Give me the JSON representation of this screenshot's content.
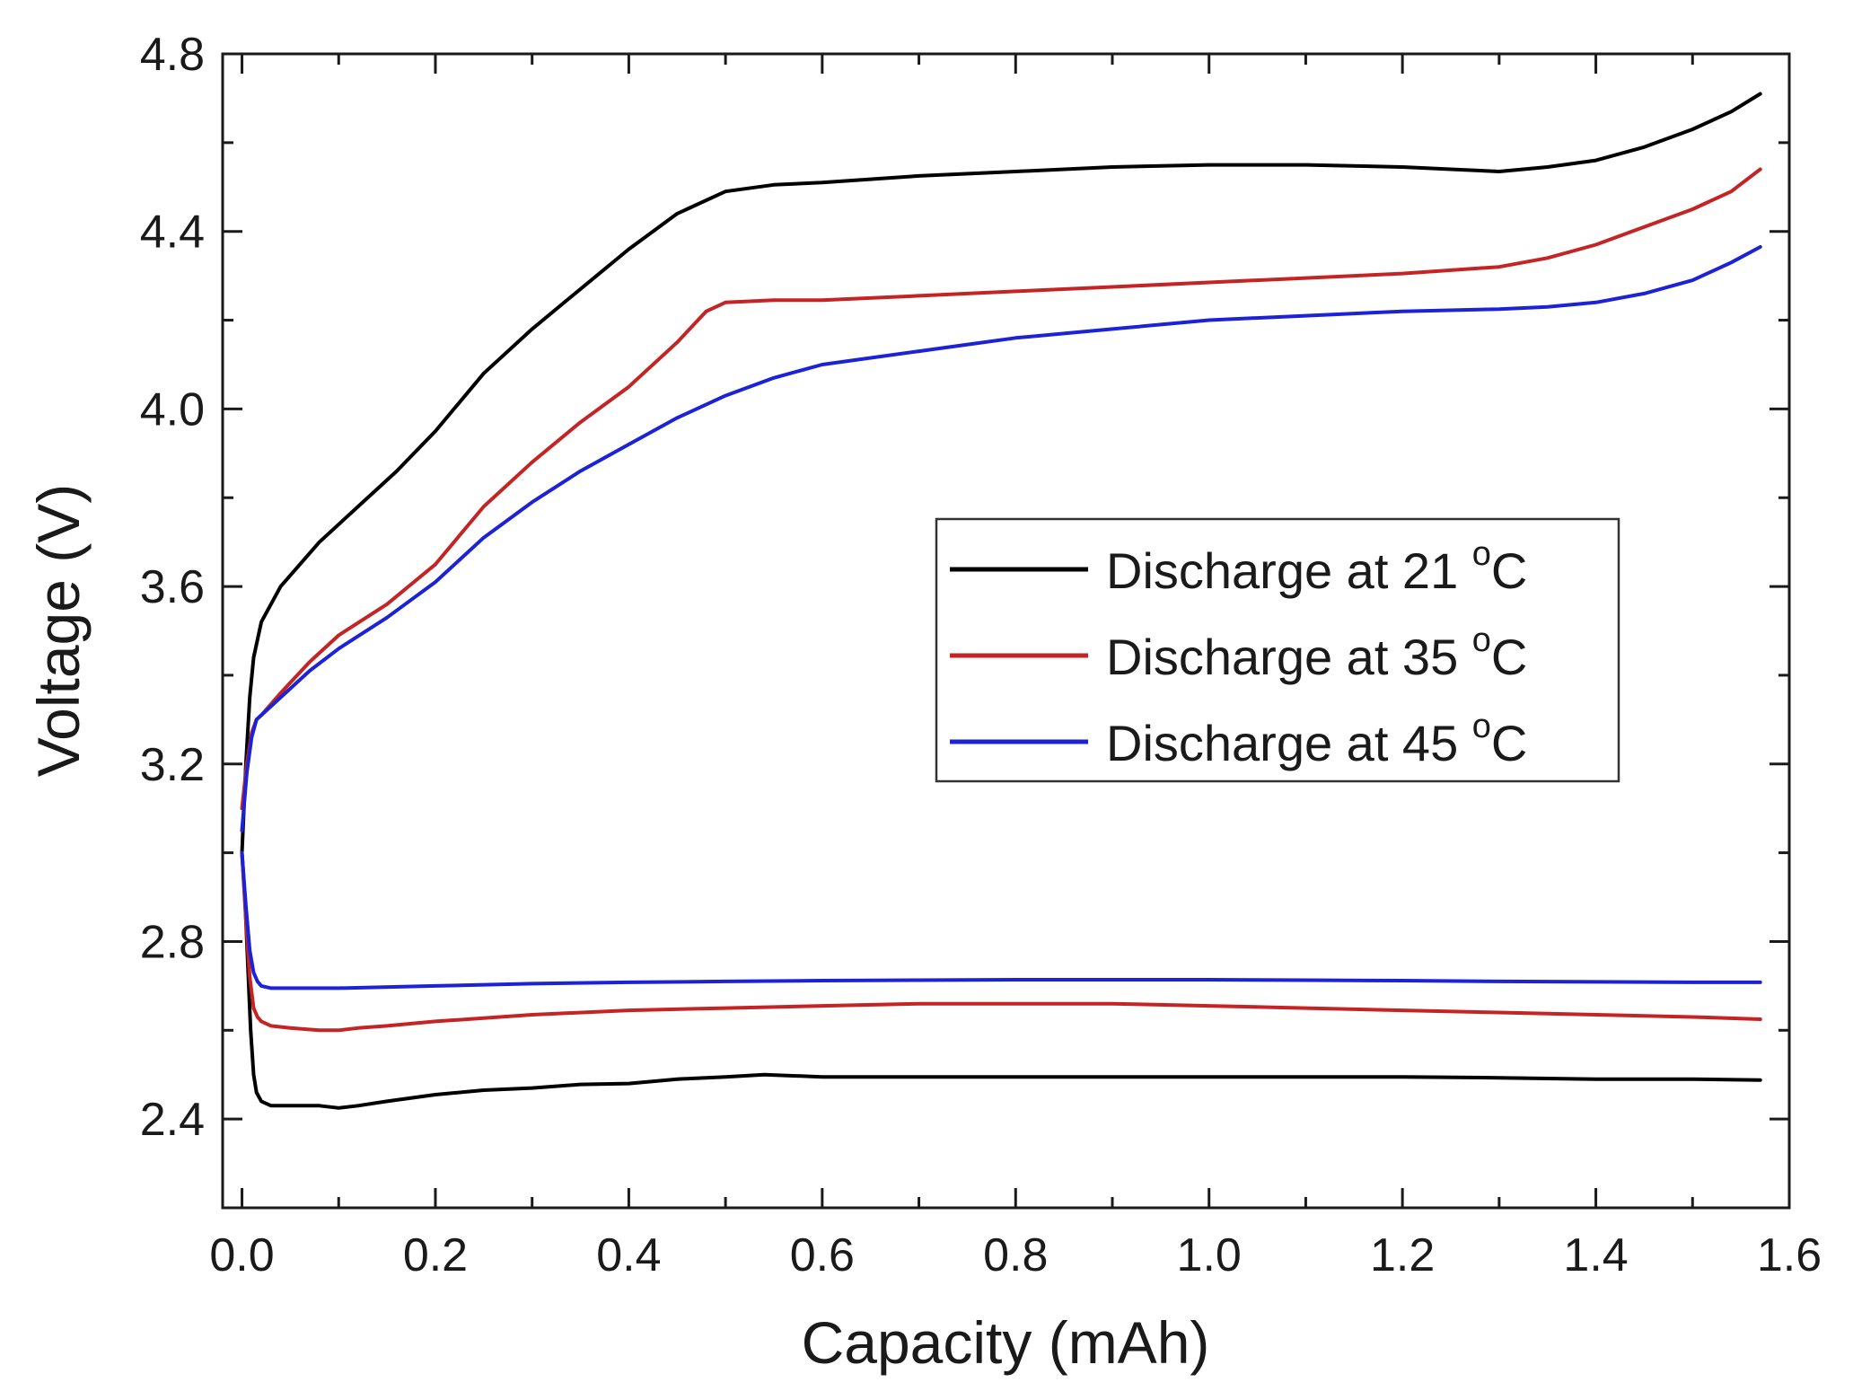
{
  "chart_data": {
    "type": "line",
    "title": "",
    "xlabel": "Capacity (mAh)",
    "ylabel": "Voltage (V)",
    "xlim": [
      -0.02,
      1.6
    ],
    "ylim": [
      2.2,
      4.8
    ],
    "xticks": [
      0.0,
      0.2,
      0.4,
      0.6,
      0.8,
      1.0,
      1.2,
      1.4,
      1.6
    ],
    "xtick_labels": [
      "0.0",
      "0.2",
      "0.4",
      "0.6",
      "0.8",
      "1.0",
      "1.2",
      "1.4",
      "1.6"
    ],
    "yticks": [
      2.4,
      2.8,
      3.2,
      3.6,
      4.0,
      4.4,
      4.8
    ],
    "ytick_labels": [
      "2.4",
      "2.8",
      "3.2",
      "3.6",
      "4.0",
      "4.4",
      "4.8"
    ],
    "grid": false,
    "legend_position": "center-right",
    "series": [
      {
        "name": "Discharge at 21 °C",
        "legend_label": "Discharge at 21 ",
        "legend_sup": "o",
        "legend_unit": "C",
        "color": "#000000",
        "segments": [
          {
            "part": "discharge",
            "x": [
              0.0,
              0.003,
              0.006,
              0.009,
              0.012,
              0.015,
              0.02,
              0.03,
              0.05,
              0.08,
              0.1,
              0.12,
              0.15,
              0.2,
              0.25,
              0.3,
              0.35,
              0.4,
              0.45,
              0.5,
              0.54,
              0.6,
              0.7,
              0.8,
              0.9,
              1.0,
              1.1,
              1.2,
              1.3,
              1.4,
              1.5,
              1.57
            ],
            "y": [
              3.0,
              2.9,
              2.75,
              2.6,
              2.5,
              2.46,
              2.44,
              2.43,
              2.43,
              2.43,
              2.425,
              2.43,
              2.44,
              2.455,
              2.465,
              2.47,
              2.478,
              2.48,
              2.49,
              2.495,
              2.5,
              2.495,
              2.495,
              2.495,
              2.495,
              2.495,
              2.495,
              2.495,
              2.493,
              2.49,
              2.49,
              2.488
            ]
          },
          {
            "part": "charge",
            "x": [
              0.0,
              0.004,
              0.008,
              0.012,
              0.02,
              0.04,
              0.08,
              0.12,
              0.16,
              0.2,
              0.25,
              0.3,
              0.35,
              0.4,
              0.45,
              0.5,
              0.55,
              0.6,
              0.7,
              0.8,
              0.9,
              1.0,
              1.1,
              1.2,
              1.25,
              1.3,
              1.35,
              1.4,
              1.45,
              1.5,
              1.54,
              1.57
            ],
            "y": [
              3.0,
              3.2,
              3.35,
              3.44,
              3.52,
              3.6,
              3.7,
              3.78,
              3.86,
              3.95,
              4.08,
              4.18,
              4.27,
              4.36,
              4.44,
              4.49,
              4.505,
              4.51,
              4.525,
              4.535,
              4.545,
              4.55,
              4.55,
              4.545,
              4.54,
              4.535,
              4.545,
              4.56,
              4.59,
              4.63,
              4.67,
              4.71
            ]
          }
        ]
      },
      {
        "name": "Discharge at 35 °C",
        "legend_label": "Discharge at 35 ",
        "legend_sup": "o",
        "legend_unit": "C",
        "color": "#c42424",
        "segments": [
          {
            "part": "discharge",
            "x": [
              0.0,
              0.004,
              0.008,
              0.012,
              0.016,
              0.02,
              0.03,
              0.05,
              0.08,
              0.1,
              0.12,
              0.15,
              0.2,
              0.3,
              0.4,
              0.5,
              0.6,
              0.7,
              0.8,
              0.9,
              1.0,
              1.1,
              1.2,
              1.3,
              1.4,
              1.5,
              1.57
            ],
            "y": [
              3.0,
              2.85,
              2.72,
              2.65,
              2.63,
              2.62,
              2.61,
              2.605,
              2.6,
              2.6,
              2.605,
              2.61,
              2.62,
              2.635,
              2.645,
              2.65,
              2.655,
              2.66,
              2.66,
              2.66,
              2.655,
              2.65,
              2.645,
              2.64,
              2.635,
              2.63,
              2.625
            ]
          },
          {
            "part": "charge",
            "x": [
              0.0,
              0.005,
              0.01,
              0.015,
              0.02,
              0.04,
              0.07,
              0.1,
              0.15,
              0.2,
              0.25,
              0.3,
              0.35,
              0.4,
              0.45,
              0.48,
              0.5,
              0.55,
              0.6,
              0.7,
              0.8,
              0.9,
              1.0,
              1.1,
              1.2,
              1.3,
              1.35,
              1.4,
              1.45,
              1.5,
              1.54,
              1.57
            ],
            "y": [
              3.1,
              3.2,
              3.27,
              3.3,
              3.31,
              3.36,
              3.43,
              3.49,
              3.56,
              3.65,
              3.78,
              3.88,
              3.97,
              4.05,
              4.15,
              4.22,
              4.24,
              4.245,
              4.245,
              4.255,
              4.265,
              4.275,
              4.285,
              4.295,
              4.305,
              4.32,
              4.34,
              4.37,
              4.41,
              4.45,
              4.49,
              4.54
            ]
          }
        ]
      },
      {
        "name": "Discharge at 45 °C",
        "legend_label": "Discharge at 45 ",
        "legend_sup": "o",
        "legend_unit": "C",
        "color": "#1c22d6",
        "segments": [
          {
            "part": "discharge",
            "x": [
              0.0,
              0.004,
              0.008,
              0.012,
              0.016,
              0.02,
              0.03,
              0.05,
              0.1,
              0.2,
              0.3,
              0.4,
              0.5,
              0.6,
              0.7,
              0.8,
              0.9,
              1.0,
              1.1,
              1.2,
              1.3,
              1.4,
              1.5,
              1.57
            ],
            "y": [
              3.0,
              2.88,
              2.78,
              2.73,
              2.71,
              2.7,
              2.695,
              2.695,
              2.695,
              2.7,
              2.705,
              2.708,
              2.71,
              2.712,
              2.713,
              2.714,
              2.714,
              2.714,
              2.713,
              2.712,
              2.71,
              2.709,
              2.708,
              2.708
            ]
          },
          {
            "part": "charge",
            "x": [
              0.0,
              0.005,
              0.01,
              0.015,
              0.02,
              0.04,
              0.07,
              0.1,
              0.15,
              0.2,
              0.25,
              0.3,
              0.35,
              0.4,
              0.45,
              0.5,
              0.55,
              0.6,
              0.7,
              0.8,
              0.9,
              1.0,
              1.1,
              1.2,
              1.3,
              1.35,
              1.4,
              1.45,
              1.5,
              1.54,
              1.57
            ],
            "y": [
              3.05,
              3.18,
              3.26,
              3.3,
              3.31,
              3.35,
              3.41,
              3.46,
              3.53,
              3.61,
              3.71,
              3.79,
              3.86,
              3.92,
              3.98,
              4.03,
              4.07,
              4.1,
              4.13,
              4.16,
              4.18,
              4.2,
              4.21,
              4.22,
              4.225,
              4.23,
              4.24,
              4.26,
              4.29,
              4.33,
              4.365
            ]
          }
        ]
      }
    ]
  }
}
